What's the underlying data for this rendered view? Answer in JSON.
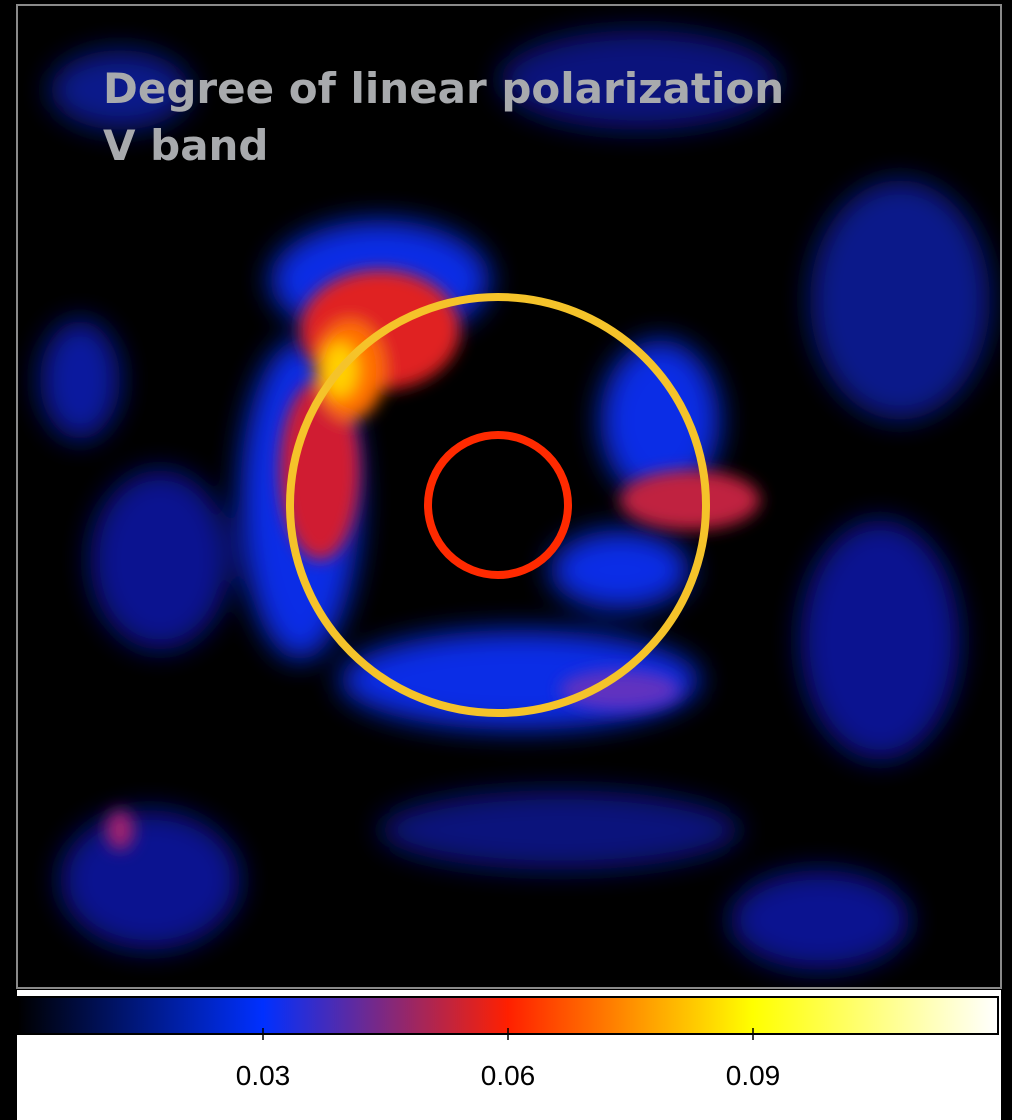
{
  "chart_data": {
    "type": "image",
    "title": "Degree of linear polarization",
    "subtitle": "V band",
    "colorbar": {
      "lim": [
        0,
        0.12
      ],
      "ticks": [
        0.03,
        0.06,
        0.09
      ],
      "colors": [
        "#000000",
        "#0030ff",
        "#ff2000",
        "#ffff00",
        "#ffffff"
      ]
    }
  }
}
